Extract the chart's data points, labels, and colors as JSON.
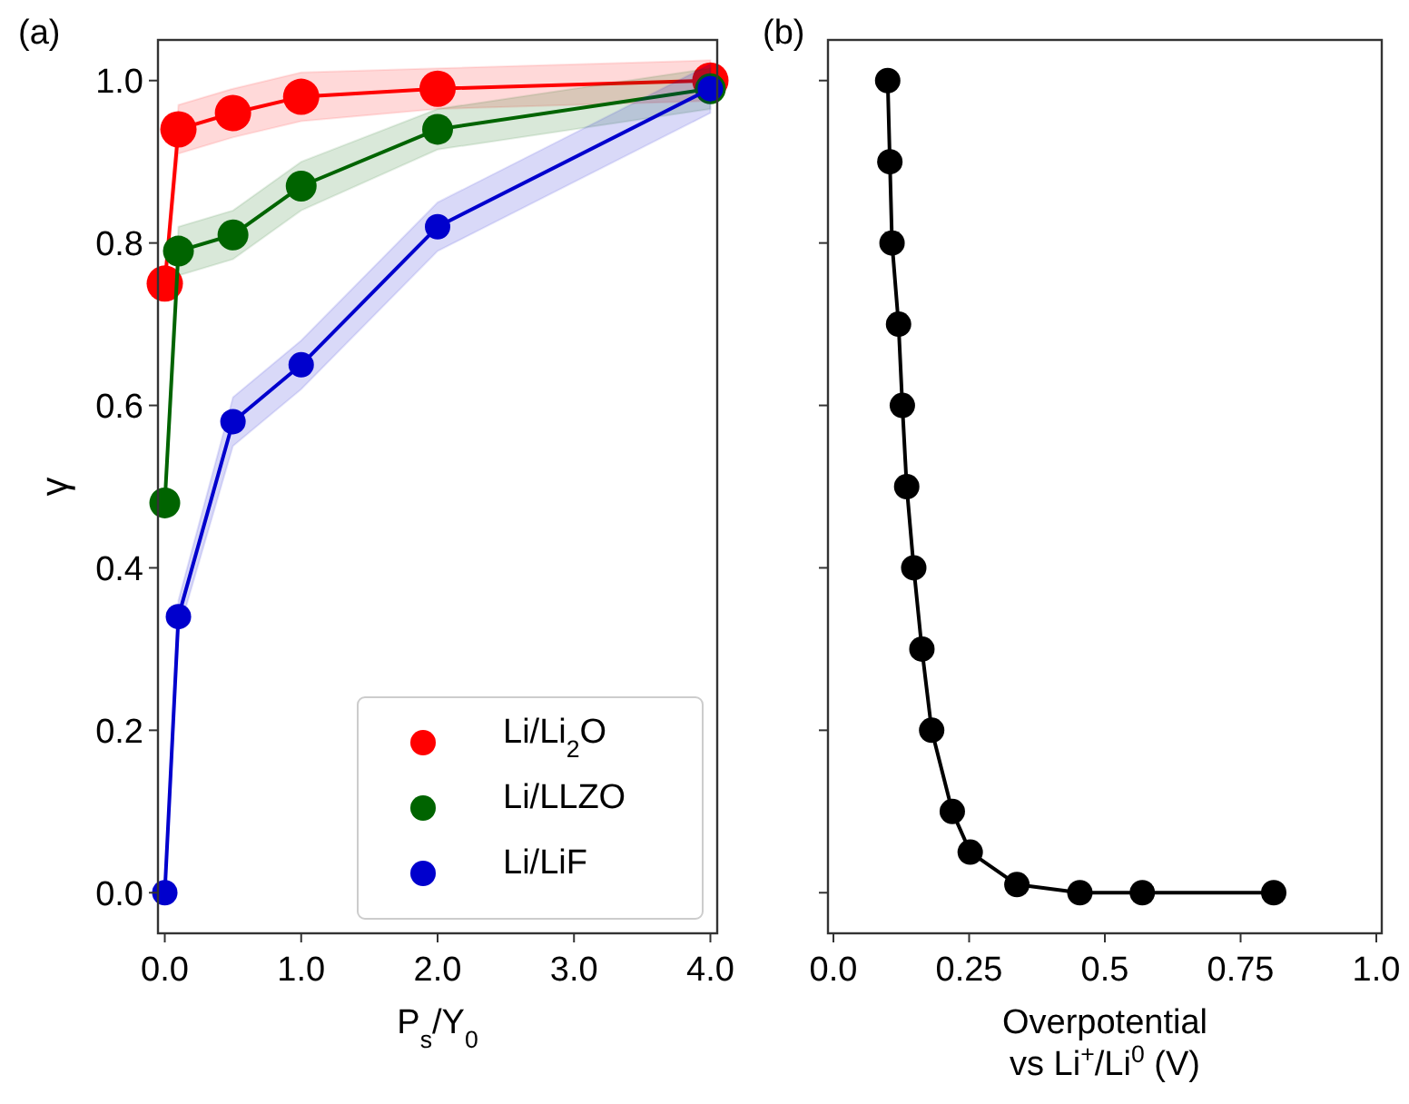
{
  "chart_data": [
    {
      "type": "line",
      "title": "(a)",
      "xlabel": "P$_{s}$/Y$_{0}$",
      "ylabel": "γ",
      "x": [
        0,
        0.1,
        0.5,
        1,
        2,
        4
      ],
      "xlim": [
        -0.05,
        4.05
      ],
      "xticks": [
        {
          "value": 0,
          "label": "0.0"
        },
        {
          "value": 1,
          "label": "1.0"
        },
        {
          "value": 2,
          "label": "2.0"
        },
        {
          "value": 3,
          "label": "3.0"
        },
        {
          "value": 4,
          "label": "4.0"
        }
      ],
      "ylim": [
        -0.05,
        1.05
      ],
      "yticks": [
        {
          "value": 0,
          "label": "0.0"
        },
        0.2,
        0.4,
        0.6,
        0.8,
        {
          "value": 1,
          "label": "1.0"
        }
      ],
      "marker": "circle",
      "legend": "bottom right",
      "grid": false,
      "series": [
        {
          "name": "Li/Li$_{2}$O",
          "color": "#ff0000",
          "values": [
            0.75,
            0.94,
            0.96,
            0.98,
            0.99,
            1.0
          ],
          "lower": [
            0.74,
            0.91,
            0.93,
            0.95,
            0.965,
            0.975
          ],
          "upper": [
            0.76,
            0.97,
            0.99,
            1.01,
            1.015,
            1.025
          ]
        },
        {
          "name": "Li/LLZO",
          "color": "#006400",
          "values": [
            0.48,
            0.79,
            0.81,
            0.87,
            0.94,
            0.99
          ],
          "lower": [
            0.47,
            0.76,
            0.78,
            0.84,
            0.915,
            0.965
          ],
          "upper": [
            0.49,
            0.82,
            0.84,
            0.9,
            0.965,
            1.015
          ]
        },
        {
          "name": "Li/LiF",
          "color": "#0000cd",
          "values": [
            0,
            0.34,
            0.58,
            0.65,
            0.82,
            0.99
          ],
          "lower": [
            -0.01,
            0.32,
            0.55,
            0.62,
            0.79,
            0.96
          ],
          "upper": [
            0.01,
            0.36,
            0.61,
            0.68,
            0.85,
            1.02
          ]
        }
      ]
    },
    {
      "type": "line",
      "title": "(b)",
      "xlabel": "Overpotential\nvs Li$^{+}$/Li$^{0}$ (V)",
      "tick_labels": "x",
      "xlim": [
        -0.01,
        1.01
      ],
      "xticks": [
        {
          "value": 0,
          "label": "0.0"
        },
        0.25,
        0.5,
        0.75,
        {
          "value": 1,
          "label": "1.0"
        }
      ],
      "ylim": [
        -0.05,
        1.05
      ],
      "yticks": [
        {
          "value": 0,
          "label": null
        },
        {
          "value": 0.2,
          "label": null
        },
        {
          "value": 0.4,
          "label": null
        },
        {
          "value": 0.6,
          "label": null
        },
        {
          "value": 0.8,
          "label": null
        },
        {
          "value": 1,
          "label": null
        }
      ],
      "marker": "circle",
      "legend": false,
      "grid": false,
      "series": [
        {
          "color": "#000000",
          "x": [
            0.1,
            0.104,
            0.108,
            0.12,
            0.127,
            0.135,
            0.148,
            0.163,
            0.181,
            0.219,
            0.252,
            0.338,
            0.454,
            0.569,
            0.811
          ],
          "values": [
            1.0,
            0.9,
            0.8,
            0.7,
            0.6,
            0.5,
            0.4,
            0.3,
            0.2,
            0.1,
            0.05,
            0.01,
            0,
            0,
            0
          ]
        }
      ]
    }
  ]
}
